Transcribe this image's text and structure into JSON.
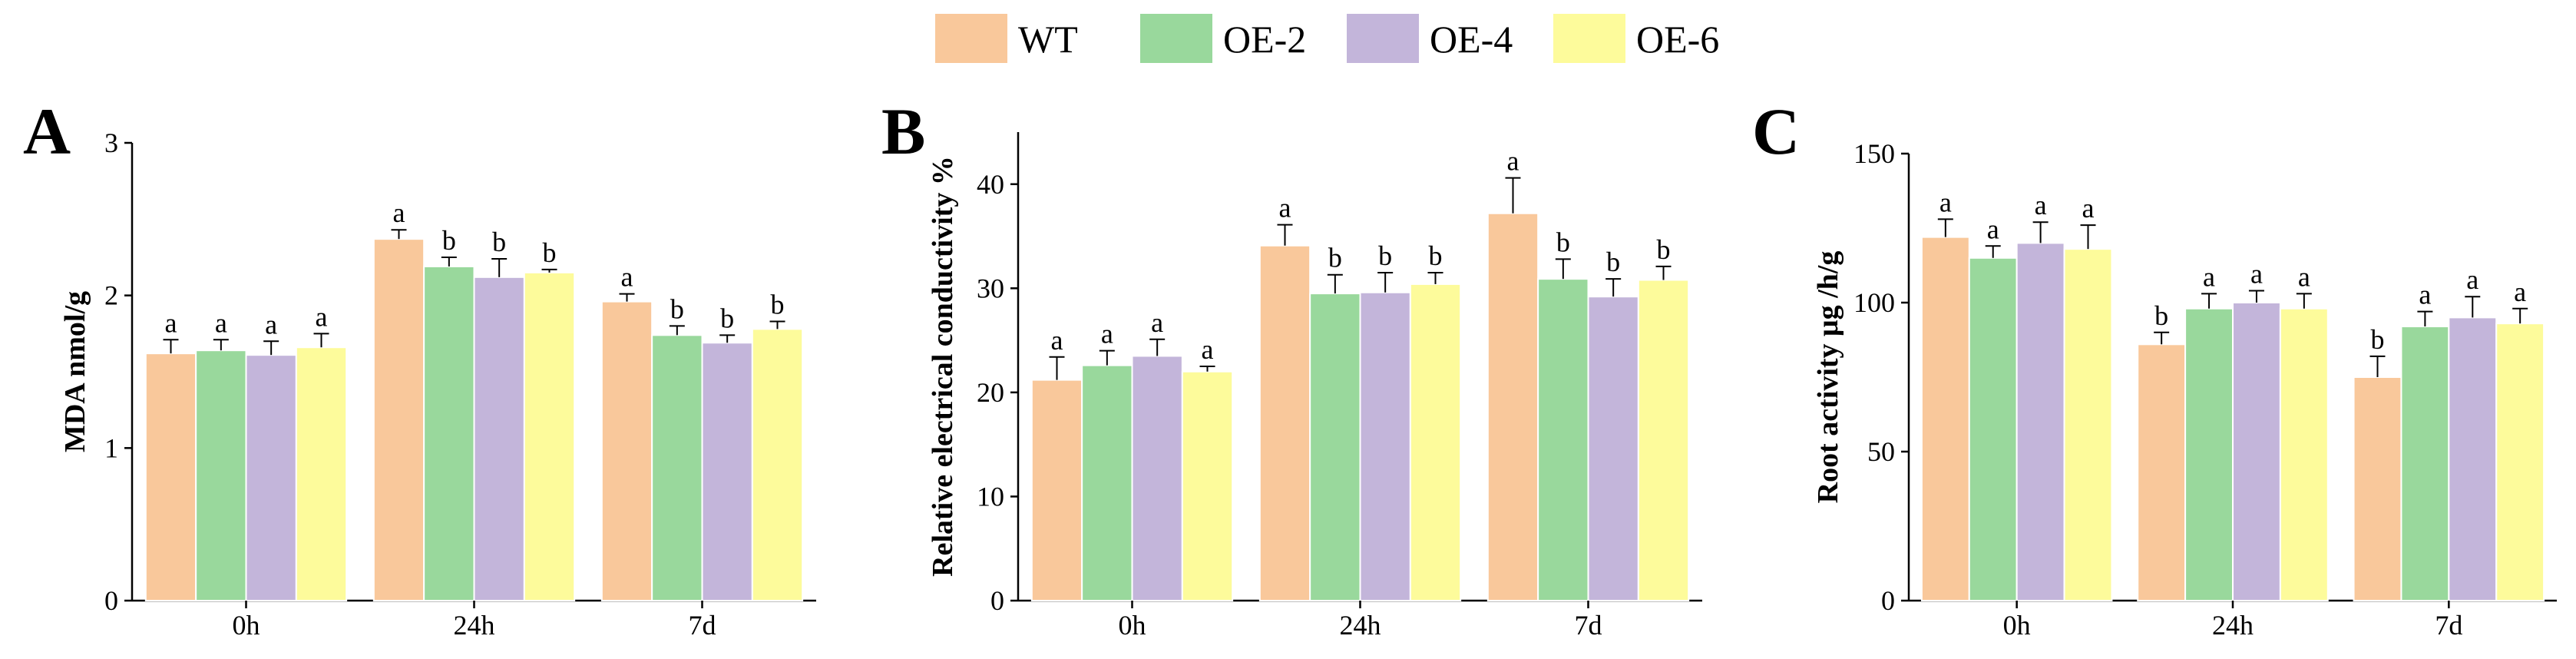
{
  "legend": [
    {
      "name": "WT",
      "color": "#f9c89b"
    },
    {
      "name": "OE-2",
      "color": "#99d89c"
    },
    {
      "name": "OE-4",
      "color": "#c3b5da"
    },
    {
      "name": "OE-6",
      "color": "#fdfb9b"
    }
  ],
  "chart_data": [
    {
      "type": "bar",
      "panel": "A",
      "title": "",
      "xlabel": "",
      "ylabel": "MDA nmol/g",
      "ylim": [
        0,
        3
      ],
      "yticks": [
        0,
        1,
        2,
        3
      ],
      "categories": [
        "0h",
        "24h",
        "7d"
      ],
      "series": [
        {
          "name": "WT",
          "values": [
            1.62,
            2.37,
            1.96
          ],
          "errors": [
            0.09,
            0.06,
            0.05
          ],
          "labels": [
            "a",
            "a",
            "a"
          ]
        },
        {
          "name": "OE-2",
          "values": [
            1.64,
            2.19,
            1.74
          ],
          "errors": [
            0.07,
            0.06,
            0.06
          ],
          "labels": [
            "a",
            "b",
            "b"
          ]
        },
        {
          "name": "OE-4",
          "values": [
            1.61,
            2.12,
            1.69
          ],
          "errors": [
            0.09,
            0.12,
            0.05
          ],
          "labels": [
            "a",
            "b",
            "b"
          ]
        },
        {
          "name": "OE-6",
          "values": [
            1.66,
            2.15,
            1.78
          ],
          "errors": [
            0.09,
            0.02,
            0.05
          ],
          "labels": [
            "a",
            "b",
            "b"
          ]
        }
      ]
    },
    {
      "type": "bar",
      "panel": "B",
      "title": "",
      "xlabel": "",
      "ylabel": "Relative electrical conductivity %",
      "ylim": [
        0,
        45
      ],
      "yticks": [
        0,
        10,
        20,
        30,
        40
      ],
      "categories": [
        "0h",
        "24h",
        "7d"
      ],
      "series": [
        {
          "name": "WT",
          "values": [
            21.2,
            34.1,
            37.2
          ],
          "errors": [
            2.2,
            2.0,
            3.4
          ],
          "labels": [
            "a",
            "a",
            "a"
          ]
        },
        {
          "name": "OE-2",
          "values": [
            22.6,
            29.5,
            30.9
          ],
          "errors": [
            1.4,
            1.8,
            1.9
          ],
          "labels": [
            "a",
            "b",
            "b"
          ]
        },
        {
          "name": "OE-4",
          "values": [
            23.5,
            29.6,
            29.2
          ],
          "errors": [
            1.6,
            1.9,
            1.7
          ],
          "labels": [
            "a",
            "b",
            "b"
          ]
        },
        {
          "name": "OE-6",
          "values": [
            22.0,
            30.4,
            30.8
          ],
          "errors": [
            0.5,
            1.1,
            1.3
          ],
          "labels": [
            "a",
            "b",
            "b"
          ]
        }
      ]
    },
    {
      "type": "bar",
      "panel": "C",
      "title": "",
      "xlabel": "",
      "ylabel": "Root activity μg /h/g",
      "ylim": [
        0,
        150
      ],
      "yticks": [
        0,
        50,
        100,
        150
      ],
      "categories": [
        "0h",
        "24h",
        "7d"
      ],
      "series": [
        {
          "name": "WT",
          "values": [
            122,
            86,
            75
          ],
          "errors": [
            6,
            4,
            7
          ],
          "labels": [
            "a",
            "b",
            "b"
          ]
        },
        {
          "name": "OE-2",
          "values": [
            115,
            98,
            92
          ],
          "errors": [
            4,
            5,
            5
          ],
          "labels": [
            "a",
            "a",
            "a"
          ]
        },
        {
          "name": "OE-4",
          "values": [
            120,
            100,
            95
          ],
          "errors": [
            7,
            4,
            7
          ],
          "labels": [
            "a",
            "a",
            "a"
          ]
        },
        {
          "name": "OE-6",
          "values": [
            118,
            98,
            93
          ],
          "errors": [
            8,
            5,
            5
          ],
          "labels": [
            "a",
            "a",
            "a"
          ]
        }
      ]
    }
  ]
}
